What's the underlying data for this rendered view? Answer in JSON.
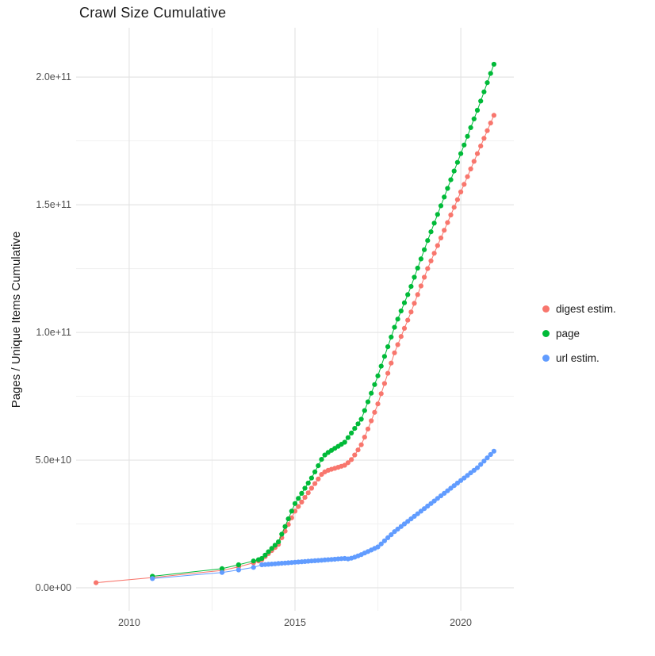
{
  "chart_data": {
    "type": "scatter",
    "title": "Crawl Size Cumulative",
    "xlabel": "",
    "ylabel": "Pages / Unique Items Cumulative",
    "legend_position": "right",
    "grid": true,
    "y_unit": 1000000000,
    "x_domain": [
      2008.4,
      2021.6
    ],
    "y_domain_billions": [
      -9,
      219.3
    ],
    "x_ticks": {
      "major": [
        2010,
        2015,
        2020
      ],
      "minor": [
        2012.5,
        2017.5
      ],
      "labels": [
        "2010",
        "2015",
        "2020"
      ]
    },
    "y_ticks": {
      "major_billions": [
        0,
        50,
        100,
        150,
        200
      ],
      "minor_billions": [
        25,
        75,
        125,
        175
      ],
      "labels": [
        "0.0e+00",
        "5.0e+10",
        "1.0e+11",
        "1.5e+11",
        "2.0e+11"
      ]
    },
    "x_monthly": [
      2014.0,
      2014.1,
      2014.2,
      2014.3,
      2014.4,
      2014.5,
      2014.6,
      2014.7,
      2014.8,
      2014.9,
      2015.0,
      2015.1,
      2015.2,
      2015.3,
      2015.4,
      2015.5,
      2015.6,
      2015.7,
      2015.8,
      2015.9,
      2016.0,
      2016.1,
      2016.2,
      2016.3,
      2016.4,
      2016.5,
      2016.6,
      2016.7,
      2016.8,
      2016.9,
      2017.0,
      2017.1,
      2017.2,
      2017.3,
      2017.4,
      2017.5,
      2017.6,
      2017.7,
      2017.8,
      2017.9,
      2018.0,
      2018.1,
      2018.2,
      2018.3,
      2018.4,
      2018.5,
      2018.6,
      2018.7,
      2018.8,
      2018.9,
      2019.0,
      2019.1,
      2019.2,
      2019.3,
      2019.4,
      2019.5,
      2019.6,
      2019.7,
      2019.8,
      2019.9,
      2020.0,
      2020.1,
      2020.2,
      2020.3,
      2020.4,
      2020.5,
      2020.6,
      2020.7,
      2020.8,
      2020.9,
      2021.0
    ],
    "series": [
      {
        "name": "digest estim.",
        "color": "#F8766D",
        "x_early": [
          2009.0,
          2010.7,
          2012.8,
          2013.3,
          2013.75,
          2013.9
        ],
        "y_early_billions": [
          2.0,
          4.0,
          6.8,
          8.2,
          9.8,
          10.5
        ],
        "y_monthly_billions": [
          11.0,
          12.2,
          13.4,
          14.6,
          15.8,
          17.0,
          19.6,
          22.2,
          24.8,
          27.4,
          30.0,
          31.8,
          33.6,
          35.4,
          37.2,
          39.0,
          40.8,
          42.6,
          44.4,
          45.4,
          46.0,
          46.4,
          46.8,
          47.2,
          47.6,
          48.0,
          49.0,
          50.2,
          52.0,
          54.0,
          56.0,
          59.0,
          62.2,
          65.4,
          68.7,
          72.0,
          76.0,
          80.0,
          84.0,
          88.0,
          92.0,
          95.2,
          98.4,
          101.6,
          104.8,
          108.0,
          111.4,
          114.8,
          118.2,
          121.6,
          125.0,
          128.0,
          131.0,
          134.0,
          137.0,
          140.0,
          143.0,
          146.0,
          149.0,
          152.0,
          155.0,
          158.0,
          161.0,
          164.0,
          167.0,
          170.0,
          173.0,
          176.0,
          179.0,
          182.0,
          185.0
        ]
      },
      {
        "name": "page",
        "color": "#00BA38",
        "x_early": [
          2010.7,
          2012.8,
          2013.3,
          2013.75,
          2013.9
        ],
        "y_early_billions": [
          4.5,
          7.5,
          9.0,
          10.5,
          11.0
        ],
        "y_monthly_billions": [
          11.5,
          12.8,
          14.1,
          15.4,
          16.7,
          18.0,
          21.0,
          24.0,
          27.0,
          30.0,
          33.0,
          35.0,
          37.0,
          39.0,
          41.0,
          43.0,
          45.4,
          47.8,
          50.3,
          52.0,
          53.0,
          53.8,
          54.6,
          55.4,
          56.2,
          57.0,
          58.8,
          60.6,
          62.4,
          64.2,
          66.0,
          69.4,
          72.8,
          76.2,
          79.6,
          83.0,
          86.8,
          90.6,
          94.4,
          98.2,
          102.0,
          105.2,
          108.4,
          111.6,
          114.8,
          118.0,
          121.6,
          125.2,
          128.8,
          132.4,
          136.0,
          139.4,
          142.8,
          146.2,
          149.6,
          153.0,
          156.4,
          159.8,
          163.2,
          166.6,
          170.0,
          173.4,
          176.8,
          180.2,
          183.6,
          187.0,
          190.6,
          194.2,
          197.8,
          201.4,
          205.0
        ]
      },
      {
        "name": "url estim.",
        "color": "#619CFF",
        "x_early": [
          2010.7,
          2012.8,
          2013.3,
          2013.75
        ],
        "y_early_billions": [
          3.6,
          6.0,
          7.0,
          8.0
        ],
        "y_monthly_billions": [
          9.0,
          9.1,
          9.2,
          9.3,
          9.4,
          9.5,
          9.6,
          9.7,
          9.8,
          9.9,
          10.0,
          10.1,
          10.2,
          10.3,
          10.4,
          10.5,
          10.6,
          10.7,
          10.8,
          10.9,
          11.0,
          11.1,
          11.2,
          11.3,
          11.4,
          11.5,
          11.3,
          11.6,
          12.0,
          12.5,
          13.0,
          13.6,
          14.2,
          14.8,
          15.4,
          16.0,
          17.2,
          18.4,
          19.6,
          20.8,
          22.0,
          23.0,
          24.0,
          25.0,
          26.0,
          27.0,
          28.0,
          29.0,
          30.0,
          31.0,
          32.0,
          33.0,
          34.0,
          35.0,
          36.0,
          37.0,
          38.0,
          39.0,
          40.0,
          41.0,
          42.0,
          43.0,
          44.0,
          45.0,
          46.0,
          47.0,
          48.3,
          49.6,
          50.9,
          52.2,
          53.5
        ]
      }
    ],
    "style": {
      "grid_major_color": "#e4e4e4",
      "grid_minor_color": "#f1f1f1",
      "tick_label_color": "#4d4d4d",
      "point_radius": 3.1
    }
  }
}
